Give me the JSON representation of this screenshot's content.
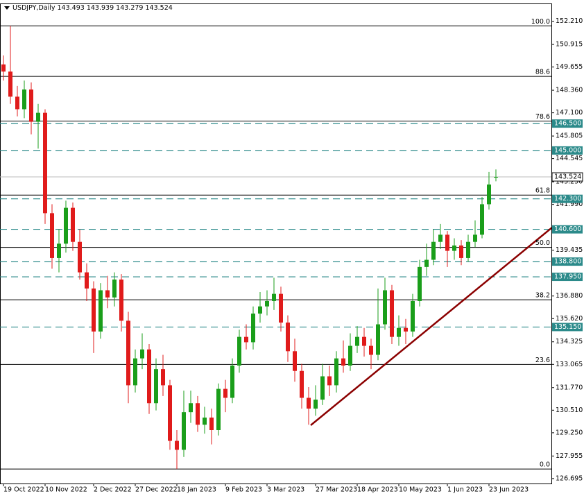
{
  "chart_data": {
    "type": "candlestick",
    "symbol": "USDJPY,Daily",
    "categories": [
      "19 Oct 2022",
      null,
      null,
      null,
      null,
      null,
      "10 Nov 2022",
      null,
      null,
      null,
      null,
      null,
      null,
      "2 Dec 2022",
      null,
      null,
      null,
      null,
      null,
      "27 Dec 2022",
      null,
      null,
      null,
      null,
      null,
      "18 Jan 2023",
      null,
      null,
      null,
      null,
      null,
      null,
      "9 Feb 2023",
      null,
      null,
      null,
      null,
      null,
      "3 Mar 2023",
      null,
      null,
      null,
      null,
      null,
      null,
      "27 Mar 2023",
      null,
      null,
      null,
      null,
      null,
      "18 Apr 2023",
      null,
      null,
      null,
      null,
      null,
      "10 May 2023",
      null,
      null,
      null,
      null,
      null,
      null,
      "1 Jun 2023",
      null,
      null,
      null,
      null,
      null,
      "23 Jun 2023",
      null
    ],
    "open": [
      149.8,
      149.4,
      148.0,
      147.3,
      148.4,
      146.6,
      147.1,
      141.5,
      139.0,
      139.8,
      141.8,
      139.9,
      138.2,
      137.3,
      134.9,
      137.2,
      136.8,
      137.8,
      135.5,
      131.9,
      133.4,
      133.9,
      130.9,
      132.8,
      131.9,
      128.8,
      128.3,
      130.4,
      130.9,
      129.7,
      130.1,
      129.4,
      131.7,
      131.2,
      133.0,
      134.6,
      134.3,
      135.9,
      136.3,
      136.6,
      137.0,
      135.4,
      133.8,
      132.7,
      131.2,
      130.6,
      131.1,
      132.4,
      131.9,
      133.4,
      133.0,
      134.1,
      134.6,
      134.1,
      133.6,
      135.3,
      137.2,
      134.6,
      135.1,
      134.9,
      136.6,
      138.5,
      138.9,
      139.9,
      140.3,
      139.4,
      139.7,
      139.0,
      139.9,
      140.3,
      142.0,
      143.493
    ],
    "high": [
      150.3,
      151.95,
      148.6,
      148.9,
      148.8,
      147.6,
      147.3,
      142.0,
      140.6,
      142.2,
      142.1,
      140.6,
      138.7,
      137.7,
      137.6,
      138.0,
      138.2,
      138.1,
      136.0,
      133.9,
      134.8,
      134.2,
      133.4,
      133.6,
      132.2,
      129.4,
      131.6,
      131.6,
      131.3,
      130.7,
      130.6,
      132.0,
      132.2,
      133.4,
      135.0,
      135.3,
      136.3,
      137.1,
      137.2,
      137.9,
      137.4,
      135.8,
      134.5,
      133.1,
      131.8,
      131.9,
      133.1,
      133.0,
      133.8,
      134.4,
      134.8,
      135.2,
      135.1,
      134.5,
      137.3,
      137.9,
      137.5,
      135.8,
      135.6,
      137.0,
      138.9,
      139.8,
      140.6,
      140.9,
      140.5,
      140.1,
      140.0,
      140.3,
      141.1,
      142.4,
      143.8,
      143.939
    ],
    "low": [
      148.9,
      147.6,
      146.9,
      146.8,
      145.9,
      145.1,
      140.9,
      138.4,
      138.2,
      139.3,
      139.4,
      137.8,
      136.6,
      133.7,
      134.5,
      136.2,
      136.3,
      134.9,
      130.9,
      131.5,
      132.8,
      130.3,
      130.5,
      131.3,
      128.3,
      127.23,
      127.9,
      129.8,
      129.3,
      129.2,
      128.6,
      129.1,
      130.4,
      130.9,
      132.6,
      133.9,
      133.9,
      135.4,
      135.8,
      136.1,
      134.9,
      133.2,
      132.1,
      130.6,
      129.7,
      130.2,
      130.8,
      131.3,
      131.5,
      132.6,
      132.7,
      133.7,
      133.5,
      132.8,
      133.3,
      135.0,
      134.2,
      134.1,
      134.2,
      134.6,
      136.3,
      138.0,
      138.6,
      139.5,
      138.5,
      138.9,
      138.6,
      138.8,
      139.6,
      140.1,
      141.7,
      143.279
    ],
    "close": [
      149.4,
      148.0,
      147.3,
      148.4,
      146.6,
      147.1,
      141.5,
      139.0,
      139.8,
      141.8,
      139.9,
      138.2,
      137.3,
      134.9,
      137.2,
      136.8,
      137.8,
      135.5,
      131.9,
      133.4,
      133.9,
      130.9,
      132.8,
      131.9,
      128.8,
      128.3,
      130.4,
      130.9,
      129.7,
      130.1,
      129.4,
      131.7,
      131.2,
      133.0,
      134.6,
      134.3,
      135.9,
      136.3,
      136.6,
      137.0,
      135.4,
      133.8,
      132.7,
      131.2,
      130.6,
      131.1,
      132.4,
      131.9,
      133.4,
      133.0,
      134.1,
      134.6,
      134.1,
      133.6,
      135.3,
      137.2,
      134.6,
      135.1,
      134.9,
      136.6,
      138.5,
      138.9,
      139.9,
      140.3,
      139.4,
      139.7,
      139.0,
      139.9,
      140.3,
      142.0,
      143.1,
      143.524
    ],
    "up_color": "#1a9e1a",
    "down_color": "#e01b1b",
    "ylim": [
      126.42,
      153.2
    ],
    "yticks": [
      {
        "value": 152.21,
        "label": "152.210"
      },
      150.915,
      149.655,
      {
        "value": 148.36,
        "label": "148.360"
      },
      {
        "value": 147.1,
        "label": "147.100"
      },
      145.805,
      144.545,
      {
        "value": 143.25,
        "label": "143.250"
      },
      {
        "value": 141.99,
        "label": "141.990"
      },
      139.435,
      {
        "value": 136.88,
        "label": "136.880"
      },
      {
        "value": 135.62,
        "label": "135.620"
      },
      134.325,
      133.065,
      {
        "value": 131.77,
        "label": "131.770"
      },
      {
        "value": 130.51,
        "label": "130.510"
      },
      {
        "value": 129.25,
        "label": "129.250"
      },
      127.955,
      126.695
    ],
    "fib_levels": [
      {
        "value": 151.95,
        "label": "100.0"
      },
      {
        "value": 149.13,
        "label": "88.6"
      },
      {
        "value": 146.64,
        "label": "78.6"
      },
      {
        "value": 142.51,
        "label": "61.8"
      },
      {
        "value": 139.59,
        "label": "50.0"
      },
      {
        "value": 136.67,
        "label": "38.2"
      },
      {
        "value": 133.06,
        "label": "23.6"
      },
      {
        "value": 127.23,
        "label": "0.0"
      }
    ],
    "levels": [
      {
        "value": 146.5,
        "label": "146.500"
      },
      {
        "value": 145.0,
        "label": "145.000"
      },
      {
        "value": 142.3,
        "label": "142.300"
      },
      {
        "value": 140.6,
        "label": "140.600"
      },
      {
        "value": 138.8,
        "label": "138.800"
      },
      {
        "value": 137.95,
        "label": "137.950"
      },
      {
        "value": 135.15,
        "label": "135.150"
      }
    ],
    "level_color": "#2b8a8a",
    "trendline": {
      "from": [
        44.3,
        129.67
      ],
      "to": [
        81.3,
        141.4
      ],
      "color": "#8b0000"
    }
  }
}
